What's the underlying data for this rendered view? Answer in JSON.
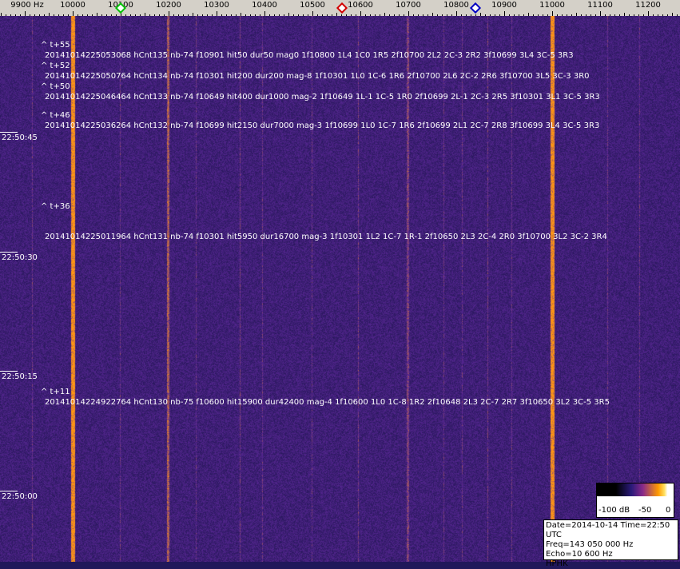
{
  "freq_axis": {
    "unit_label": "9900 Hz",
    "labels": [
      "10000",
      "10100",
      "10200",
      "10300",
      "10400",
      "10500",
      "10600",
      "10700",
      "10800",
      "10900",
      "11000",
      "11100",
      "11200"
    ]
  },
  "markers": [
    {
      "name": "green",
      "freq": 10100,
      "color": "#00c000"
    },
    {
      "name": "red",
      "freq": 10562,
      "color": "#d00000"
    },
    {
      "name": "blue",
      "freq": 10840,
      "color": "#0000c0"
    }
  ],
  "time_labels": [
    "22:50:45",
    "22:50:30",
    "22:50:15",
    "22:50:00"
  ],
  "tags": [
    "^ t+55",
    "^ t+52",
    "^ t+50",
    "^ t+46",
    "^ t+36",
    "^ t+11"
  ],
  "annotations": [
    "20141014225053068 hCnt135 nb-74 f10901 hit50 dur50 mag0 1f10800 1L4 1C0 1R5 2f10700 2L2 2C-3 2R2 3f10699 3L4 3C-5 3R3",
    "20141014225050764 hCnt134 nb-74 f10301 hit200 dur200 mag-8 1f10301 1L0 1C-6 1R6 2f10700 2L6 2C-2 2R6 3f10700 3L5 3C-3 3R0",
    "20141014225046464 hCnt133 nb-74 f10649 hit400 dur1000 mag-2 1f10649 1L-1 1C-5 1R0 2f10699 2L-1 2C-3 2R5 3f10301 3L1 3C-5 3R3",
    "20141014225036264 hCnt132 nb-74 f10699 hit2150 dur7000 mag-3 1f10699 1L0 1C-7 1R6 2f10699 2L1 2C-7 2R8 3f10699 3L4 3C-5 3R3",
    "20141014225011964 hCnt131 nb-74 f10301 hit5950 dur16700 mag-3 1f10301 1L2 1C-7 1R-1 2f10650 2L3 2C-4 2R0 3f10700 3L2 3C-2 3R4",
    "20141014224922764 hCnt130 nb-75 f10600 hit15900 dur42400 mag-4 1f10600 1L0 1C-8 1R2 2f10648 2L3 2C-7 2R7 3f10650 3L2 3C-5 3R5"
  ],
  "colorscale": {
    "labels": [
      "-100 dB",
      "-50",
      "0"
    ]
  },
  "info": {
    "date_time": "Date=2014-10-14 Time=22:50 UTC",
    "freq": "Freq=143 050 000 Hz",
    "echo": "Echo=10 600 Hz",
    "station": "HPHK"
  }
}
